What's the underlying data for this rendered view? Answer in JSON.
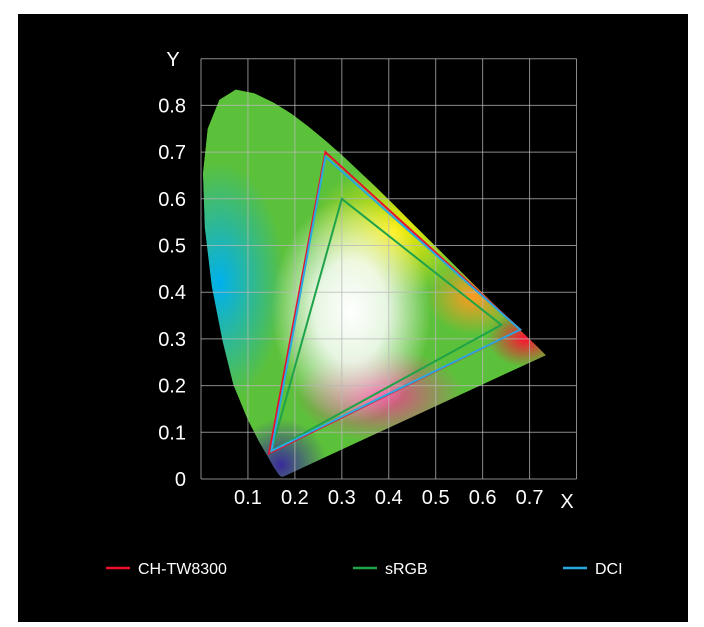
{
  "chart_data": {
    "type": "line",
    "title": "",
    "xlabel": "X",
    "ylabel": "Y",
    "xlim": [
      0,
      0.8
    ],
    "ylim": [
      0,
      0.9
    ],
    "x_ticks": [
      0.1,
      0.2,
      0.3,
      0.4,
      0.5,
      0.6,
      0.7
    ],
    "x_tick_labels": [
      "0.1",
      "0.2",
      "0.3",
      "0.4",
      "0.5",
      "0.6",
      "0.7"
    ],
    "y_ticks": [
      0,
      0.1,
      0.2,
      0.3,
      0.4,
      0.5,
      0.6,
      0.7,
      0.8
    ],
    "y_tick_labels": [
      "0",
      "0.1",
      "0.2",
      "0.3",
      "0.4",
      "0.5",
      "0.6",
      "0.7",
      "0.8"
    ],
    "grid": true,
    "legend_position": "bottom",
    "series": [
      {
        "name": "CH-TW8300",
        "color": "#e8112d",
        "points": [
          [
            0.265,
            0.7
          ],
          [
            0.68,
            0.32
          ],
          [
            0.145,
            0.055
          ]
        ]
      },
      {
        "name": "sRGB",
        "color": "#1fa34a",
        "points": [
          [
            0.3,
            0.6
          ],
          [
            0.64,
            0.33
          ],
          [
            0.15,
            0.06
          ]
        ]
      },
      {
        "name": "DCI",
        "color": "#29a9e1",
        "points": [
          [
            0.265,
            0.69
          ],
          [
            0.68,
            0.32
          ],
          [
            0.15,
            0.06
          ]
        ]
      }
    ]
  }
}
